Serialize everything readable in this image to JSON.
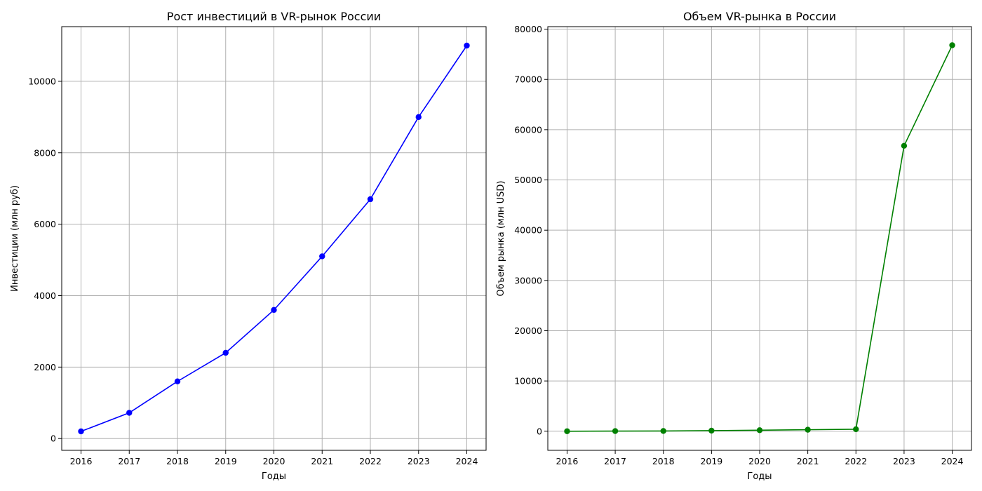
{
  "chart_data": [
    {
      "type": "line",
      "title": "Рост инвестиций в VR-рынок России",
      "xlabel": "Годы",
      "ylabel": "Инвестиции (млн руб)",
      "x": [
        2016,
        2017,
        2018,
        2019,
        2020,
        2021,
        2022,
        2023,
        2024
      ],
      "series": [
        {
          "values": [
            200,
            720,
            1600,
            2400,
            3600,
            5100,
            6700,
            9000,
            11000
          ],
          "color": "#0000ff",
          "marker": "circle"
        }
      ],
      "xlim": [
        2015.6,
        2024.4
      ],
      "ylim": [
        -330,
        11530
      ],
      "yticks": [
        0,
        2000,
        4000,
        6000,
        8000,
        10000
      ],
      "grid": true,
      "legend": "none"
    },
    {
      "type": "line",
      "title": "Объем VR-рынка в России",
      "xlabel": "Годы",
      "ylabel": "Объем рынка (млн USD)",
      "x": [
        2016,
        2017,
        2018,
        2019,
        2020,
        2021,
        2022,
        2023,
        2024
      ],
      "series": [
        {
          "values": [
            0,
            30,
            50,
            120,
            200,
            300,
            400,
            56800,
            76800
          ],
          "color": "#008000",
          "marker": "circle"
        }
      ],
      "xlim": [
        2015.6,
        2024.4
      ],
      "ylim": [
        -3800,
        80500
      ],
      "yticks": [
        0,
        10000,
        20000,
        30000,
        40000,
        50000,
        60000,
        70000,
        80000
      ],
      "grid": true,
      "legend": "none"
    }
  ]
}
